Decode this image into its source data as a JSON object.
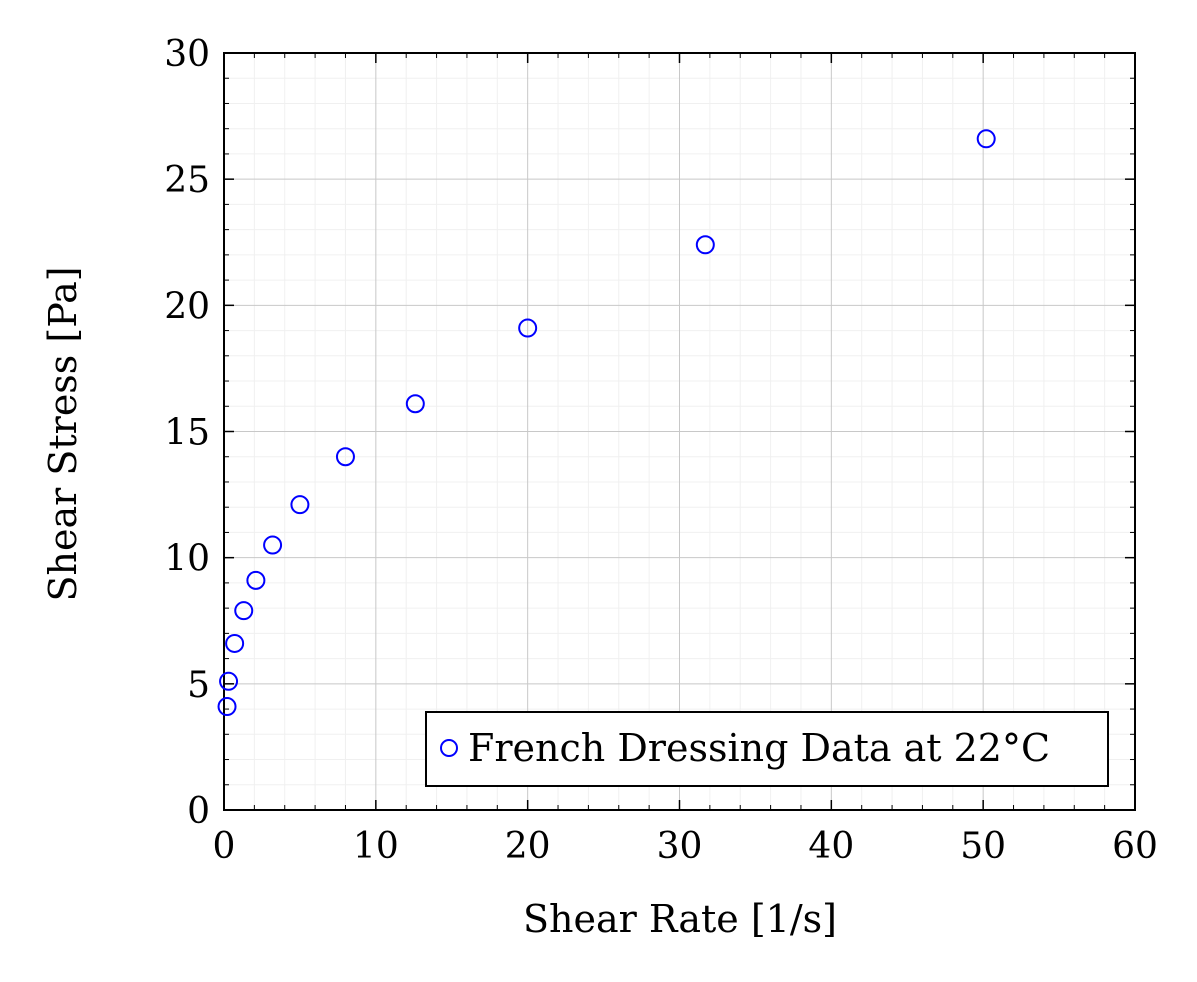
{
  "chart_data": {
    "type": "scatter",
    "xlabel": "Shear Rate [1/s]",
    "ylabel": "Shear Stress [Pa]",
    "xlim": [
      0,
      60
    ],
    "ylim": [
      0,
      30
    ],
    "x_ticks": [
      0,
      10,
      20,
      30,
      40,
      50,
      60
    ],
    "y_ticks": [
      0,
      5,
      10,
      15,
      20,
      25,
      30
    ],
    "x_tick_labels": [
      "0",
      "10",
      "20",
      "30",
      "40",
      "50",
      "60"
    ],
    "y_tick_labels": [
      "0",
      "5",
      "10",
      "15",
      "20",
      "25",
      "30"
    ],
    "grid": true,
    "minor_grid": true,
    "legend_position": "bottom-right",
    "series": [
      {
        "name": "French Dressing Data at 22°C",
        "color": "#0000ff",
        "marker": "open-circle",
        "x": [
          0.2,
          0.3,
          0.7,
          1.3,
          2.1,
          3.2,
          5.0,
          8.0,
          12.6,
          20.0,
          31.7,
          50.2
        ],
        "y": [
          4.1,
          5.1,
          6.6,
          7.9,
          9.1,
          10.5,
          12.1,
          14.0,
          16.1,
          19.1,
          22.4,
          26.6
        ]
      }
    ]
  }
}
